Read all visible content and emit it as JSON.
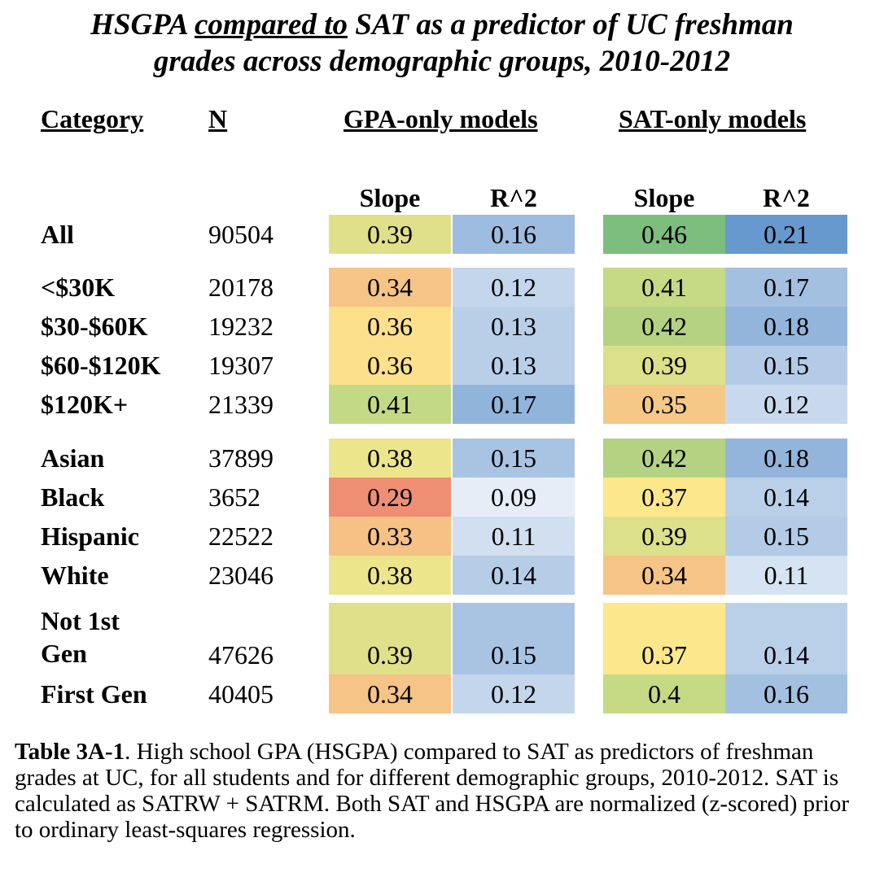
{
  "title": {
    "part1": "HSGPA ",
    "underlined": "compared to",
    "part2": " SAT as a predictor of UC freshman",
    "line2": "grades across demographic groups, 2010-2012"
  },
  "headers": {
    "category": "Category",
    "n": "N",
    "gpa_models": "GPA-only models",
    "sat_models": "SAT-only models",
    "slope": "Slope",
    "r2": "R^2"
  },
  "rows": [
    {
      "label": "All",
      "label2": "",
      "n": "90504",
      "gpa_slope": "0.39",
      "gpa_r2": "0.16",
      "sat_slope": "0.46",
      "sat_r2": "0.21"
    },
    {
      "label": "<$30K",
      "label2": "",
      "n": "20178",
      "gpa_slope": "0.34",
      "gpa_r2": "0.12",
      "sat_slope": "0.41",
      "sat_r2": "0.17"
    },
    {
      "label": "$30-$60K",
      "label2": "",
      "n": "19232",
      "gpa_slope": "0.36",
      "gpa_r2": "0.13",
      "sat_slope": "0.42",
      "sat_r2": "0.18"
    },
    {
      "label": "$60-$120K",
      "label2": "",
      "n": "19307",
      "gpa_slope": "0.36",
      "gpa_r2": "0.13",
      "sat_slope": "0.39",
      "sat_r2": "0.15"
    },
    {
      "label": "$120K+",
      "label2": "",
      "n": "21339",
      "gpa_slope": "0.41",
      "gpa_r2": "0.17",
      "sat_slope": "0.35",
      "sat_r2": "0.12"
    },
    {
      "label": "Asian",
      "label2": "",
      "n": "37899",
      "gpa_slope": "0.38",
      "gpa_r2": "0.15",
      "sat_slope": "0.42",
      "sat_r2": "0.18"
    },
    {
      "label": "Black",
      "label2": "",
      "n": "3652",
      "gpa_slope": "0.29",
      "gpa_r2": "0.09",
      "sat_slope": "0.37",
      "sat_r2": "0.14"
    },
    {
      "label": "Hispanic",
      "label2": "",
      "n": "22522",
      "gpa_slope": "0.33",
      "gpa_r2": "0.11",
      "sat_slope": "0.39",
      "sat_r2": "0.15"
    },
    {
      "label": "White",
      "label2": "",
      "n": "23046",
      "gpa_slope": "0.38",
      "gpa_r2": "0.14",
      "sat_slope": "0.34",
      "sat_r2": "0.11"
    },
    {
      "label": "Not 1st",
      "label2": "Gen",
      "n": "47626",
      "gpa_slope": "0.39",
      "gpa_r2": "0.15",
      "sat_slope": "0.37",
      "sat_r2": "0.14"
    },
    {
      "label": "First Gen",
      "label2": "",
      "n": "40405",
      "gpa_slope": "0.34",
      "gpa_r2": "0.12",
      "sat_slope": "0.4",
      "sat_r2": "0.16"
    }
  ],
  "colors": {
    "gpa_slope": [
      "#e1e08a",
      "#f5c486",
      "#fce08b",
      "#fce08b",
      "#c4d985",
      "#ede58b",
      "#ee8f73",
      "#f5c185",
      "#ede58b",
      "#e1e08a",
      "#f5c486"
    ],
    "gpa_r2": [
      "#9ebcdf",
      "#c4d6ec",
      "#b9cfe8",
      "#b9cfe8",
      "#91b4db",
      "#a9c4e3",
      "#e6edf7",
      "#d1dff0",
      "#b5cde7",
      "#a9c4e3",
      "#c4d6ec"
    ],
    "sat_slope": [
      "#7dbd7e",
      "#c6d985",
      "#b5d283",
      "#dde08a",
      "#f5c888",
      "#b5d283",
      "#fde78b",
      "#dde08a",
      "#f5c486",
      "#fde78b",
      "#c6d985"
    ],
    "sat_r2": [
      "#6798ce",
      "#a3c0e1",
      "#93b5db",
      "#b3cbe6",
      "#c9d9ed",
      "#93b5db",
      "#bad0e9",
      "#b3cbe6",
      "#d5e3f2",
      "#bad0e9",
      "#a3c0e1"
    ]
  },
  "caption": {
    "label": "Table 3A-1",
    "text": ". High school GPA (HSGPA) compared to SAT as predictors of freshman grades at UC, for all students and for different demographic groups, 2010-2012. SAT is calculated as SATRW + SATRM. Both SAT and HSGPA are normalized (z-scored) prior to ordinary least-squares regression."
  }
}
